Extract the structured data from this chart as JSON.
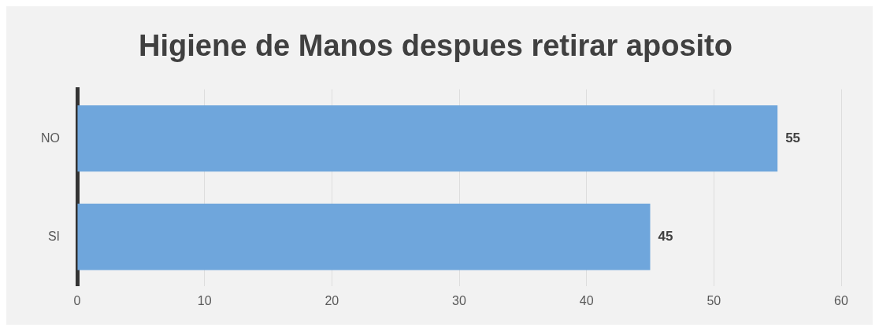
{
  "chart_data": {
    "type": "bar",
    "orientation": "horizontal",
    "title": "Higiene de Manos despues retirar aposito",
    "categories": [
      "NO",
      "SI"
    ],
    "values": [
      55,
      45
    ],
    "color": "#6fa6dc",
    "xlim": [
      0,
      60
    ],
    "xticks": [
      0,
      10,
      20,
      30,
      40,
      50,
      60
    ],
    "grid": "x",
    "data_labels": true,
    "legend": false
  }
}
